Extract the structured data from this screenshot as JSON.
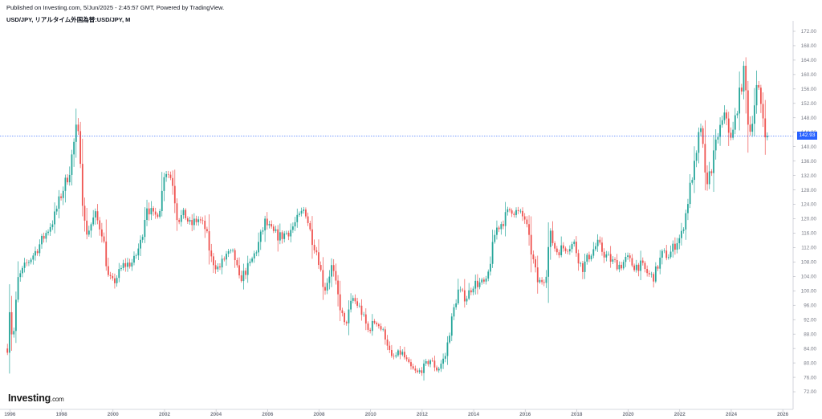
{
  "header": {
    "published": "Published on Investing.com, 5/Jun/2025 - 2:45:57 GMT, Powered by TradingView.",
    "symbol": "USD/JPY, リアルタイム外国為替:USD/JPY, M"
  },
  "brand": {
    "name": "Investing",
    "suffix": ".com"
  },
  "colors": {
    "up": "#26a69a",
    "down": "#ef5350",
    "price_line": "#2962ff",
    "axis": "#787b86"
  },
  "chart_data": {
    "type": "candlestick",
    "interval": "M",
    "symbol": "USD/JPY",
    "last_price": "142.93",
    "xlim": [
      1995.8,
      2026.4
    ],
    "ylim": [
      68,
      174
    ],
    "x_ticks": [
      "1996",
      "1998",
      "2000",
      "2002",
      "2004",
      "2006",
      "2008",
      "2010",
      "2012",
      "2014",
      "2016",
      "2018",
      "2020",
      "2022",
      "2024",
      "2026"
    ],
    "y_ticks": [
      "72.00",
      "76.00",
      "80.00",
      "84.00",
      "88.00",
      "92.00",
      "96.00",
      "100.00",
      "104.00",
      "108.00",
      "112.00",
      "116.00",
      "120.00",
      "124.00",
      "128.00",
      "132.00",
      "136.00",
      "140.00",
      "144.00",
      "148.00",
      "152.00",
      "156.00",
      "160.00",
      "164.00",
      "168.00",
      "172.00"
    ],
    "anchors": [
      [
        1995.9,
        84
      ],
      [
        1996.0,
        97
      ],
      [
        1996.1,
        84
      ],
      [
        1996.3,
        103
      ],
      [
        1996.6,
        107
      ],
      [
        1997.0,
        111
      ],
      [
        1997.4,
        116
      ],
      [
        1997.7,
        120
      ],
      [
        1998.0,
        127
      ],
      [
        1998.3,
        133
      ],
      [
        1998.6,
        146
      ],
      [
        1998.75,
        136
      ],
      [
        1998.85,
        120
      ],
      [
        1999.0,
        116
      ],
      [
        1999.3,
        121
      ],
      [
        1999.6,
        116
      ],
      [
        1999.8,
        104
      ],
      [
        2000.0,
        102
      ],
      [
        2000.4,
        107
      ],
      [
        2000.8,
        108
      ],
      [
        2001.1,
        114
      ],
      [
        2001.3,
        124
      ],
      [
        2001.6,
        120
      ],
      [
        2001.85,
        124
      ],
      [
        2002.0,
        134
      ],
      [
        2002.3,
        131
      ],
      [
        2002.5,
        120
      ],
      [
        2002.8,
        121
      ],
      [
        2003.0,
        118
      ],
      [
        2003.3,
        120
      ],
      [
        2003.6,
        117
      ],
      [
        2003.8,
        109
      ],
      [
        2004.1,
        106
      ],
      [
        2004.4,
        110
      ],
      [
        2004.7,
        110
      ],
      [
        2004.9,
        103
      ],
      [
        2005.3,
        107
      ],
      [
        2005.6,
        112
      ],
      [
        2005.9,
        119
      ],
      [
        2006.2,
        116
      ],
      [
        2006.5,
        115
      ],
      [
        2006.9,
        117
      ],
      [
        2007.2,
        120
      ],
      [
        2007.45,
        123
      ],
      [
        2007.7,
        115
      ],
      [
        2007.95,
        110
      ],
      [
        2008.2,
        100
      ],
      [
        2008.5,
        107
      ],
      [
        2008.8,
        96
      ],
      [
        2009.0,
        90
      ],
      [
        2009.3,
        98
      ],
      [
        2009.6,
        95
      ],
      [
        2009.9,
        89
      ],
      [
        2010.2,
        92
      ],
      [
        2010.6,
        87
      ],
      [
        2010.8,
        81
      ],
      [
        2011.2,
        83
      ],
      [
        2011.5,
        79
      ],
      [
        2011.8,
        77
      ],
      [
        2012.1,
        79
      ],
      [
        2012.3,
        81
      ],
      [
        2012.6,
        78
      ],
      [
        2012.9,
        82
      ],
      [
        2013.2,
        94
      ],
      [
        2013.4,
        100
      ],
      [
        2013.7,
        98
      ],
      [
        2014.0,
        102
      ],
      [
        2014.5,
        102
      ],
      [
        2014.85,
        117
      ],
      [
        2015.1,
        119
      ],
      [
        2015.45,
        123
      ],
      [
        2015.8,
        121
      ],
      [
        2016.0,
        120
      ],
      [
        2016.2,
        112
      ],
      [
        2016.5,
        102
      ],
      [
        2016.8,
        104
      ],
      [
        2016.95,
        116
      ],
      [
        2017.2,
        111
      ],
      [
        2017.5,
        112
      ],
      [
        2017.9,
        113
      ],
      [
        2018.2,
        106
      ],
      [
        2018.5,
        110
      ],
      [
        2018.8,
        113
      ],
      [
        2019.1,
        110
      ],
      [
        2019.4,
        108
      ],
      [
        2019.7,
        107
      ],
      [
        2019.95,
        109
      ],
      [
        2020.2,
        107
      ],
      [
        2020.5,
        107
      ],
      [
        2020.85,
        104
      ],
      [
        2021.0,
        104
      ],
      [
        2021.3,
        110
      ],
      [
        2021.6,
        110
      ],
      [
        2021.9,
        114
      ],
      [
        2022.05,
        115
      ],
      [
        2022.25,
        122
      ],
      [
        2022.45,
        131
      ],
      [
        2022.65,
        137
      ],
      [
        2022.8,
        147
      ],
      [
        2022.9,
        139
      ],
      [
        2023.0,
        130
      ],
      [
        2023.2,
        133
      ],
      [
        2023.5,
        144
      ],
      [
        2023.8,
        149
      ],
      [
        2024.0,
        141
      ],
      [
        2024.2,
        150
      ],
      [
        2024.5,
        161
      ],
      [
        2024.7,
        143
      ],
      [
        2024.9,
        152
      ],
      [
        2025.0,
        157
      ],
      [
        2025.2,
        150
      ],
      [
        2025.35,
        143
      ],
      [
        2025.42,
        142.93
      ]
    ]
  }
}
